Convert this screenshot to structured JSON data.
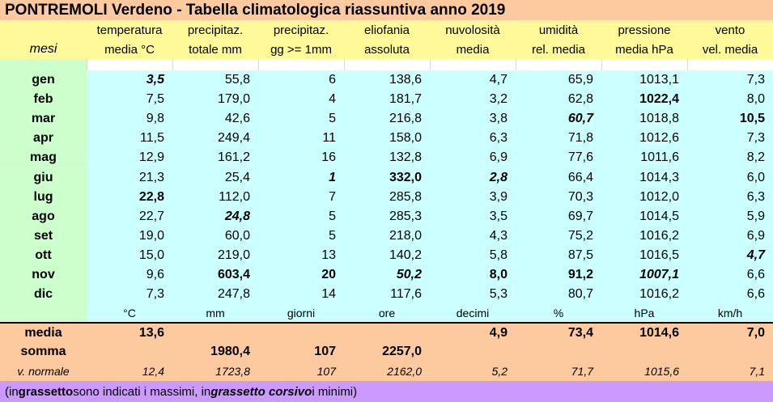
{
  "title": "PONTREMOLI Verdeno - Tabella climatologica riassuntiva anno 2019",
  "header": {
    "line1": [
      "",
      "temperatura",
      "precipitaz.",
      "precipitaz.",
      "eliofania",
      "nuvolosità",
      "umidità",
      "pressione",
      "vento"
    ],
    "line2": [
      "mesi",
      "media °C",
      "totale mm",
      "gg >= 1mm",
      "assoluta",
      "media",
      "rel. media",
      "media hPa",
      "vel. media"
    ]
  },
  "months": [
    {
      "name": "gen",
      "values": [
        "3,5",
        "55,8",
        "6",
        "138,6",
        "4,7",
        "65,9",
        "1013,1",
        "7,3"
      ],
      "styles": [
        "bi",
        "",
        "",
        "",
        "",
        "",
        "",
        ""
      ]
    },
    {
      "name": "feb",
      "values": [
        "7,5",
        "179,0",
        "4",
        "181,7",
        "3,2",
        "62,8",
        "1022,4",
        "8,0"
      ],
      "styles": [
        "",
        "",
        "",
        "",
        "",
        "",
        "b",
        ""
      ]
    },
    {
      "name": "mar",
      "values": [
        "9,8",
        "42,6",
        "5",
        "216,8",
        "3,8",
        "60,7",
        "1018,8",
        "10,5"
      ],
      "styles": [
        "",
        "",
        "",
        "",
        "",
        "bi",
        "",
        "b"
      ]
    },
    {
      "name": "apr",
      "values": [
        "11,5",
        "249,4",
        "11",
        "158,0",
        "6,3",
        "71,8",
        "1012,6",
        "7,3"
      ],
      "styles": [
        "",
        "",
        "",
        "",
        "",
        "",
        "",
        ""
      ]
    },
    {
      "name": "mag",
      "values": [
        "12,9",
        "161,2",
        "16",
        "132,8",
        "6,9",
        "77,6",
        "1011,6",
        "8,2"
      ],
      "styles": [
        "",
        "",
        "",
        "",
        "",
        "",
        "",
        ""
      ]
    },
    {
      "name": "giu",
      "values": [
        "21,3",
        "25,4",
        "1",
        "332,0",
        "2,8",
        "66,4",
        "1014,3",
        "6,0"
      ],
      "styles": [
        "",
        "",
        "bi",
        "b",
        "bi",
        "",
        "",
        ""
      ]
    },
    {
      "name": "lug",
      "values": [
        "22,8",
        "112,0",
        "7",
        "285,8",
        "3,9",
        "70,3",
        "1012,0",
        "6,3"
      ],
      "styles": [
        "b",
        "",
        "",
        "",
        "",
        "",
        "",
        ""
      ]
    },
    {
      "name": "ago",
      "values": [
        "22,7",
        "24,8",
        "5",
        "285,3",
        "3,5",
        "69,7",
        "1014,5",
        "5,9"
      ],
      "styles": [
        "",
        "bi",
        "",
        "",
        "",
        "",
        "",
        ""
      ]
    },
    {
      "name": "set",
      "values": [
        "19,0",
        "60,0",
        "5",
        "218,0",
        "4,3",
        "75,2",
        "1016,2",
        "6,9"
      ],
      "styles": [
        "",
        "",
        "",
        "",
        "",
        "",
        "",
        ""
      ]
    },
    {
      "name": "ott",
      "values": [
        "15,0",
        "219,0",
        "13",
        "140,2",
        "5,8",
        "87,5",
        "1016,5",
        "4,7"
      ],
      "styles": [
        "",
        "",
        "",
        "",
        "",
        "",
        "",
        "bi"
      ]
    },
    {
      "name": "nov",
      "values": [
        "9,6",
        "603,4",
        "20",
        "50,2",
        "8,0",
        "91,2",
        "1007,1",
        "6,6"
      ],
      "styles": [
        "",
        "b",
        "b",
        "bi",
        "b",
        "b",
        "bi",
        ""
      ]
    },
    {
      "name": "dic",
      "values": [
        "7,3",
        "247,8",
        "14",
        "117,6",
        "5,3",
        "80,7",
        "1016,2",
        "6,6"
      ],
      "styles": [
        "",
        "",
        "",
        "",
        "",
        "",
        "",
        ""
      ]
    }
  ],
  "units": [
    "°C",
    "mm",
    "giorni",
    "ore",
    "decimi",
    "%",
    "hPa",
    "km/h"
  ],
  "summary": {
    "media": {
      "label": "media",
      "values": [
        "13,6",
        "",
        "",
        "",
        "4,9",
        "73,4",
        "1014,6",
        "7,0"
      ]
    },
    "somma": {
      "label": "somma",
      "values": [
        "",
        "1980,4",
        "107",
        "2257,0",
        "",
        "",
        "",
        ""
      ]
    },
    "normale": {
      "label": "v. normale",
      "values": [
        "12,4",
        "1723,8",
        "107",
        "2162,0",
        "5,2",
        "71,7",
        "1015,6",
        "7,1"
      ]
    }
  },
  "footnote": {
    "p1": "(in ",
    "p2": "grassetto",
    "p3": " sono indicati i massimi, in ",
    "p4": "grassetto corsivo",
    "p5": " i minimi)"
  },
  "colors": {
    "title_bg": "#fdca9f",
    "header_bg": "#fff999",
    "data_bg": "#ccffff",
    "month_col_bg": "#ccffcc",
    "summary_bg": "#fdca9f",
    "footnote_bg": "#cc99ff"
  }
}
